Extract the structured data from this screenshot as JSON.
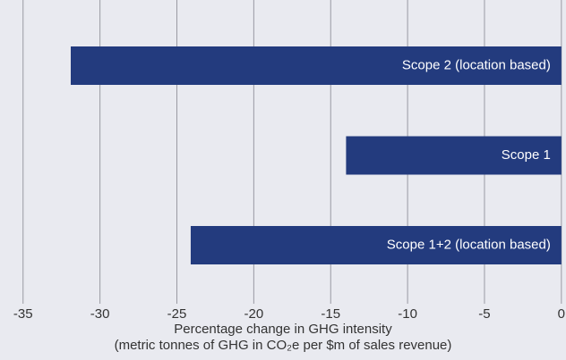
{
  "chart_data": {
    "type": "barh",
    "categories": [
      "Scope 2 (location based)",
      "Scope 1",
      "Scope 1+2 (location based)"
    ],
    "values": [
      -31.9,
      -14.0,
      -24.1
    ],
    "color": "#233b7e",
    "xlabel": "Percentage change in GHG intensity",
    "xlabel2": "(metric tonnes of GHG in CO₂e per $m of sales revenue)",
    "xlim": [
      -36.5,
      0.3
    ],
    "xticks": [
      -35,
      -30,
      -25,
      -20,
      -15,
      -10,
      -5,
      0
    ],
    "grid": true
  }
}
